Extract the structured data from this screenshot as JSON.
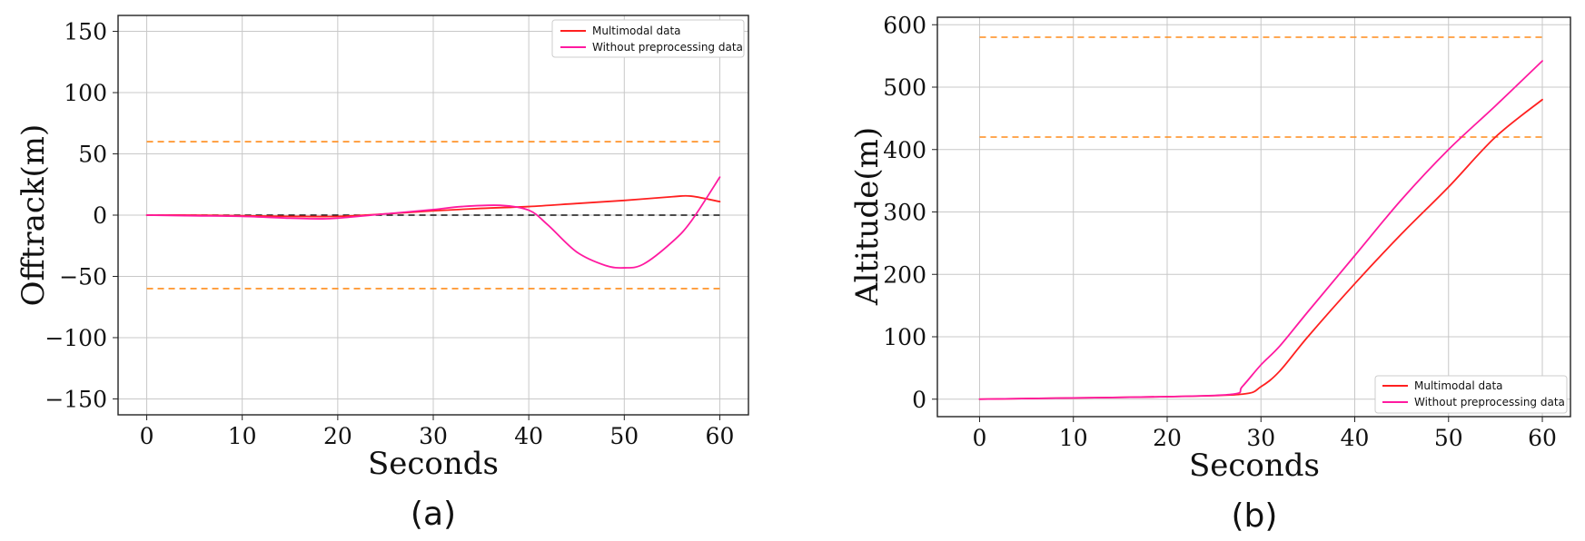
{
  "chart_data": [
    {
      "panel_label": "(a)",
      "type": "line",
      "xlabel": "Seconds",
      "ylabel": "Offtrack(m)",
      "xlim": [
        -3,
        63
      ],
      "ylim": [
        -163,
        163
      ],
      "xticks": [
        0,
        10,
        20,
        30,
        40,
        50,
        60
      ],
      "xtick_labels": [
        "0",
        "10",
        "20",
        "30",
        "40",
        "50",
        "60"
      ],
      "yticks": [
        -150,
        -100,
        -50,
        0,
        50,
        100,
        150
      ],
      "ytick_labels": [
        "−150",
        "−100",
        "−50",
        "0",
        "50",
        "100",
        "150"
      ],
      "grid": true,
      "legend_position": "top-right",
      "series": [
        {
          "name": "Multimodal data",
          "color": "#ff2020",
          "x": [
            0,
            5,
            10,
            15,
            20,
            25,
            30,
            35,
            40,
            45,
            50,
            55,
            57,
            60
          ],
          "y": [
            0,
            0,
            -0.5,
            -1,
            -1,
            1,
            3.5,
            5.5,
            7,
            9.5,
            12,
            15,
            15.5,
            11
          ]
        },
        {
          "name": "Without preprocessing data",
          "color": "#ff1aa0",
          "x": [
            0,
            5,
            10,
            15,
            18,
            20,
            25,
            30,
            33,
            37,
            40,
            42,
            45,
            48,
            50,
            52,
            55,
            57,
            60
          ],
          "y": [
            0,
            -0.5,
            -1,
            -2.5,
            -3,
            -2.5,
            1,
            4.5,
            7,
            8,
            4,
            -8,
            -30,
            -41,
            -43,
            -40,
            -22,
            -5,
            31
          ]
        }
      ],
      "reference_lines": [
        {
          "name": "upper-limit",
          "y": 60,
          "color": "#ff8c1a",
          "style": "dashed",
          "x_range": [
            0,
            60
          ]
        },
        {
          "name": "lower-limit",
          "y": -60,
          "color": "#ff8c1a",
          "style": "dashed",
          "x_range": [
            0,
            60
          ]
        },
        {
          "name": "zero-line",
          "y": 0,
          "color": "#111111",
          "style": "dashed",
          "x_range": [
            0,
            60
          ]
        }
      ]
    },
    {
      "panel_label": "(b)",
      "type": "line",
      "xlabel": "Seconds",
      "ylabel": "Altitude(m)",
      "xlim": [
        -4.5,
        63
      ],
      "ylim": [
        -28,
        612
      ],
      "xticks": [
        0,
        10,
        20,
        30,
        40,
        50,
        60
      ],
      "xtick_labels": [
        "0",
        "10",
        "20",
        "30",
        "40",
        "50",
        "60"
      ],
      "yticks": [
        0,
        100,
        200,
        300,
        400,
        500,
        600
      ],
      "ytick_labels": [
        "0",
        "100",
        "200",
        "300",
        "400",
        "500",
        "600"
      ],
      "grid": true,
      "legend_position": "bottom-right",
      "series": [
        {
          "name": "Multimodal data",
          "color": "#ff2020",
          "x": [
            0,
            10,
            20,
            28,
            30,
            32,
            35,
            40,
            45,
            50,
            55,
            60
          ],
          "y": [
            0,
            2,
            4,
            8,
            20,
            45,
            100,
            185,
            265,
            340,
            420,
            480
          ]
        },
        {
          "name": "Without preprocessing data",
          "color": "#ff1aa0",
          "x": [
            0,
            10,
            20,
            27,
            28,
            30,
            32,
            35,
            40,
            45,
            50,
            55,
            60
          ],
          "y": [
            0,
            2,
            4,
            8,
            20,
            55,
            85,
            140,
            230,
            320,
            400,
            470,
            542
          ]
        }
      ],
      "reference_lines": [
        {
          "name": "upper-limit",
          "y": 580,
          "color": "#ff8c1a",
          "style": "dashed",
          "x_range": [
            0,
            60
          ]
        },
        {
          "name": "lower-limit",
          "y": 420,
          "color": "#ff8c1a",
          "style": "dashed",
          "x_range": [
            0,
            60
          ]
        }
      ]
    }
  ]
}
